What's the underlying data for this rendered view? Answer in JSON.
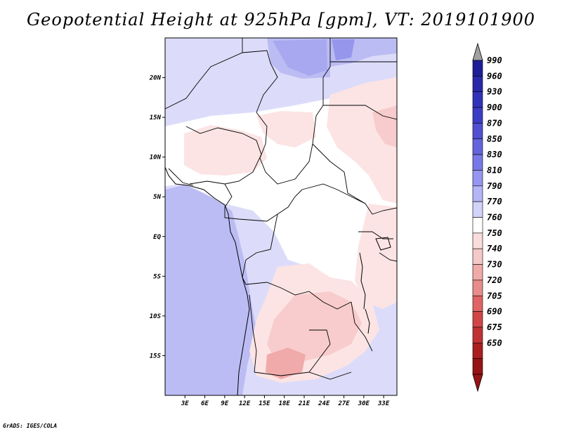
{
  "title": "Geopotential Height at 925hPa [gpm], VT: 2019101900",
  "footer": "GrADS: IGES/COLA",
  "map": {
    "variable": "Geopotential Height",
    "level": "925hPa",
    "units": "gpm",
    "valid_time": "2019101900",
    "lon_range": [
      0,
      35
    ],
    "lat_range": [
      -20,
      25
    ],
    "x_ticks": [
      "3E",
      "6E",
      "9E",
      "12E",
      "15E",
      "18E",
      "21E",
      "24E",
      "27E",
      "30E",
      "33E"
    ],
    "x_tick_values": [
      3,
      6,
      9,
      12,
      15,
      18,
      21,
      24,
      27,
      30,
      33
    ],
    "y_ticks": [
      "20N",
      "15N",
      "10N",
      "5N",
      "EQ",
      "5S",
      "10S",
      "15S"
    ],
    "y_tick_values": [
      20,
      15,
      10,
      5,
      0,
      -5,
      -10,
      -15
    ]
  },
  "legend": {
    "levels": [
      "990",
      "960",
      "930",
      "900",
      "870",
      "850",
      "830",
      "810",
      "790",
      "770",
      "760",
      "750",
      "740",
      "730",
      "720",
      "705",
      "690",
      "675",
      "650"
    ],
    "colors": [
      "#1e1e96",
      "#2828a8",
      "#3232b8",
      "#3c3cc4",
      "#5050d0",
      "#6464dc",
      "#7878e6",
      "#9696f0",
      "#b4b4f6",
      "#d2d2fa",
      "#ffffff",
      "#fadcdc",
      "#f6c8c8",
      "#f0aaaa",
      "#e88c8c",
      "#e06464",
      "#d04646",
      "#c03232",
      "#aa1e1e",
      "#961414"
    ],
    "top_arrow_color": "#a0a0a0",
    "bottom_arrow_color": "#961414"
  }
}
